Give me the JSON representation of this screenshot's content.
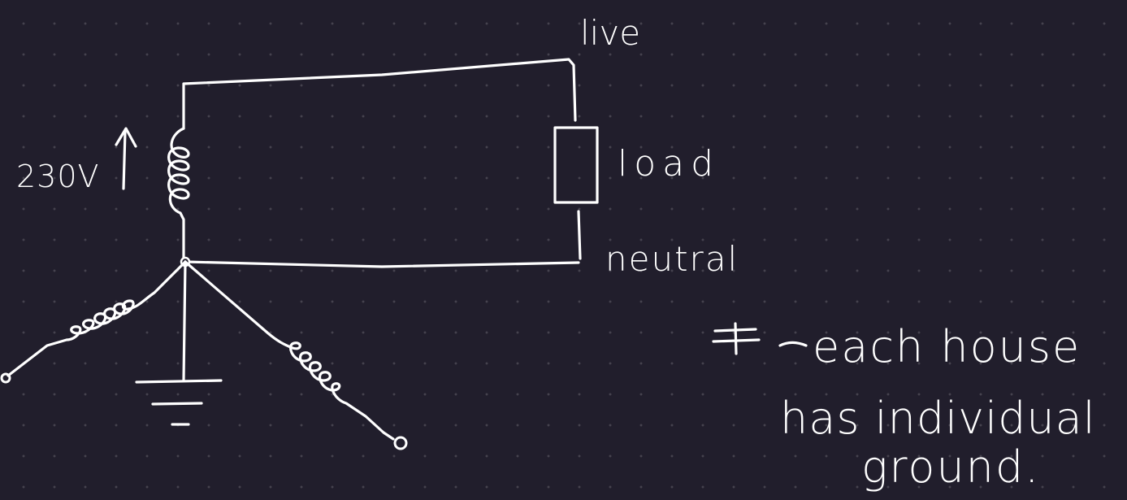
{
  "labels": {
    "live": "live",
    "load": "load",
    "neutral": "neutral",
    "voltage": "230V",
    "note_line1": "each house",
    "note_line2": "has individual",
    "note_line3": "ground."
  },
  "symbols": {
    "voltage_arrow": "↑",
    "ground_symbol": "⏚"
  },
  "colors": {
    "background": "#211e2c",
    "ink": "#ffffff"
  }
}
